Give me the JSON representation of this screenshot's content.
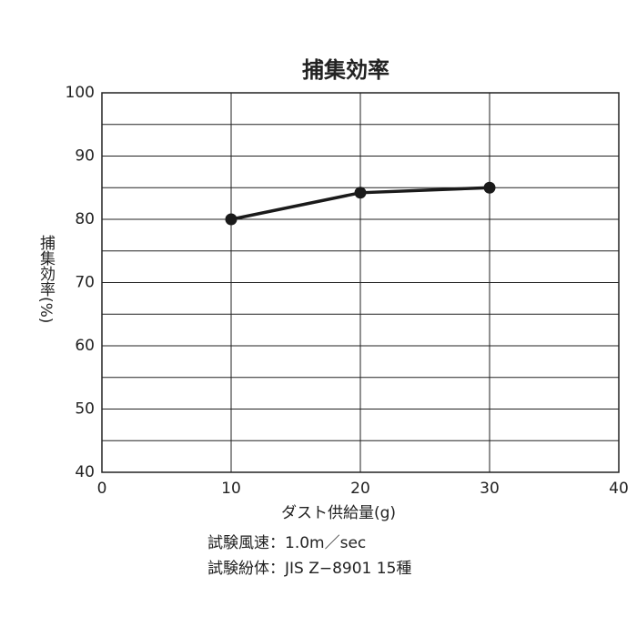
{
  "chart_data": {
    "type": "line",
    "title": "捕集効率",
    "x_label": "ダスト供給量(g)",
    "y_label": "捕集効率(%)",
    "x": [
      10,
      20,
      30
    ],
    "series": [
      {
        "name": "捕集効率",
        "color": "#1a1a1a",
        "values": [
          80,
          84.2,
          85
        ]
      }
    ],
    "xlim": [
      0,
      40
    ],
    "xticks": [
      0,
      10,
      20,
      30,
      40
    ],
    "ylim": [
      40,
      100
    ],
    "yticks": [
      40,
      50,
      60,
      70,
      80,
      90,
      100
    ],
    "y_minor_grid": [
      45,
      55,
      65,
      75,
      85,
      95
    ],
    "grid": true,
    "notes": [
      "試験風速：1.0m／sec",
      "試験紛体：JIS Z−8901 15種"
    ]
  }
}
